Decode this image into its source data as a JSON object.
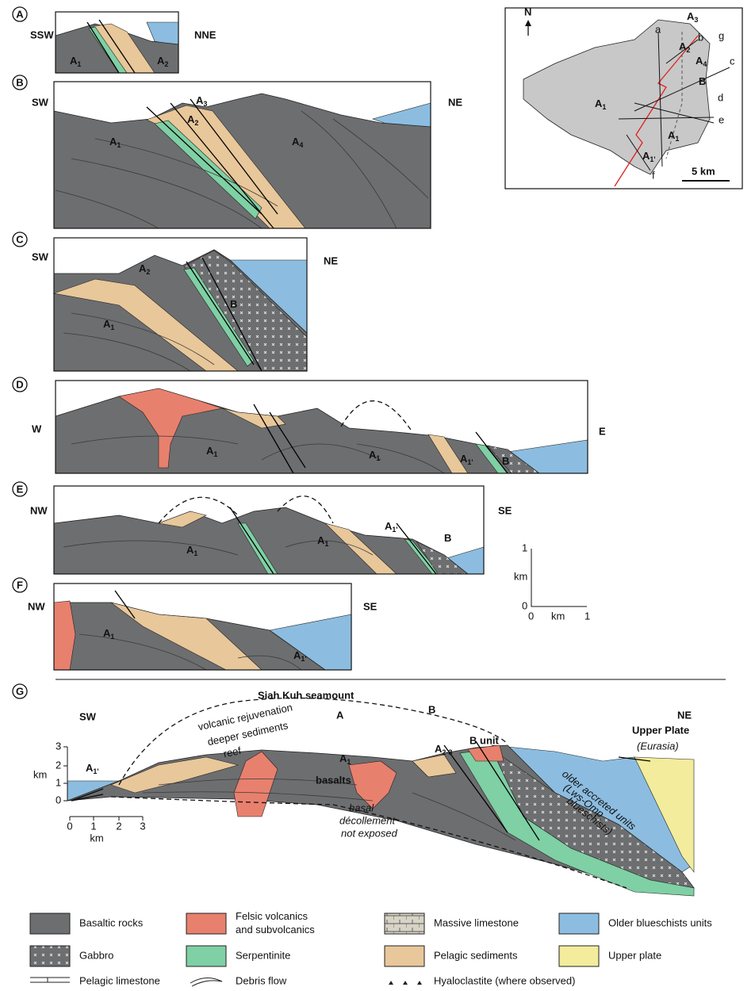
{
  "panels": [
    {
      "letter": "A",
      "left": "SSW",
      "right": "NNE",
      "units": [
        {
          "base": "A",
          "sub": "1"
        },
        {
          "base": "A",
          "sub": "2"
        }
      ]
    },
    {
      "letter": "B",
      "left": "SW",
      "right": "NE",
      "units": [
        {
          "base": "A",
          "sub": "1"
        },
        {
          "base": "A",
          "sub": "3"
        },
        {
          "base": "A",
          "sub": "2"
        },
        {
          "base": "A",
          "sub": "4"
        }
      ]
    },
    {
      "letter": "C",
      "left": "SW",
      "right": "NE",
      "units": [
        {
          "base": "A",
          "sub": "2"
        },
        {
          "base": "B",
          "sub": ""
        },
        {
          "base": "A",
          "sub": "1"
        }
      ]
    },
    {
      "letter": "D",
      "left": "W",
      "right": "E",
      "units": [
        {
          "base": "A",
          "sub": "1"
        },
        {
          "base": "A",
          "sub": "1"
        },
        {
          "base": "A",
          "sub": "1'"
        },
        {
          "base": "B",
          "sub": ""
        }
      ]
    },
    {
      "letter": "E",
      "left": "NW",
      "right": "SE",
      "units": [
        {
          "base": "A",
          "sub": "1"
        },
        {
          "base": "A",
          "sub": "1"
        },
        {
          "base": "A",
          "sub": "1'"
        },
        {
          "base": "B",
          "sub": ""
        }
      ]
    },
    {
      "letter": "F",
      "left": "NW",
      "right": "SE",
      "units": [
        {
          "base": "A",
          "sub": "1"
        },
        {
          "base": "A",
          "sub": "1'"
        }
      ]
    }
  ],
  "map": {
    "north": "N",
    "units": [
      {
        "base": "A",
        "sub": "3"
      },
      {
        "base": "A",
        "sub": "2"
      },
      {
        "base": "A",
        "sub": "4"
      },
      {
        "base": "B",
        "sub": ""
      },
      {
        "base": "A",
        "sub": "1"
      },
      {
        "base": "A",
        "sub": "1"
      },
      {
        "base": "A",
        "sub": "1'"
      }
    ],
    "sections": [
      "a",
      "b",
      "c",
      "d",
      "e",
      "f",
      "g"
    ],
    "scale": "5 km"
  },
  "scale_bar": {
    "y_ticks": [
      "1",
      "0"
    ],
    "y_unit": "km",
    "x_ticks": [
      "0",
      "1"
    ],
    "x_unit": "km"
  },
  "panel_g": {
    "letter": "G",
    "left": "SW",
    "right": "NE",
    "title": "Siah Kuh seamount",
    "upper_plate": "Upper Plate",
    "eurasia": "(Eurasia)",
    "annotations": [
      "volcanic rejuvenation",
      "deeper sediments",
      "reef"
    ],
    "top_labels": [
      "A",
      "B"
    ],
    "units": [
      {
        "base": "A",
        "sub": "1"
      },
      {
        "base": "A",
        "sub": "2-3"
      },
      {
        "base": "A",
        "sub": "1'"
      }
    ],
    "basalts": "basalts",
    "b_unit": "B unit",
    "older": [
      "older accreted units",
      "(Lws-Omp",
      "blueschists)"
    ],
    "decollement": [
      "basal",
      "décollement",
      "not exposed"
    ],
    "y_ticks": [
      "3",
      "2",
      "1",
      "0"
    ],
    "y_unit": "km",
    "x_ticks": [
      "0",
      "1",
      "2",
      "3"
    ],
    "x_unit": "km"
  },
  "legend": [
    [
      "Basaltic rocks"
    ],
    [
      "Felsic volcanics",
      "and subvolcanics"
    ],
    [
      "Massive limestone"
    ],
    [
      "Older blueschists units"
    ],
    [
      "Gabbro"
    ],
    [
      "Serpentinite"
    ],
    [
      "Pelagic sediments"
    ],
    [
      "Upper plate"
    ],
    [
      "Pelagic limestone"
    ],
    [
      "Debris flow"
    ],
    [
      "Hyaloclastite (where observed)"
    ]
  ]
}
